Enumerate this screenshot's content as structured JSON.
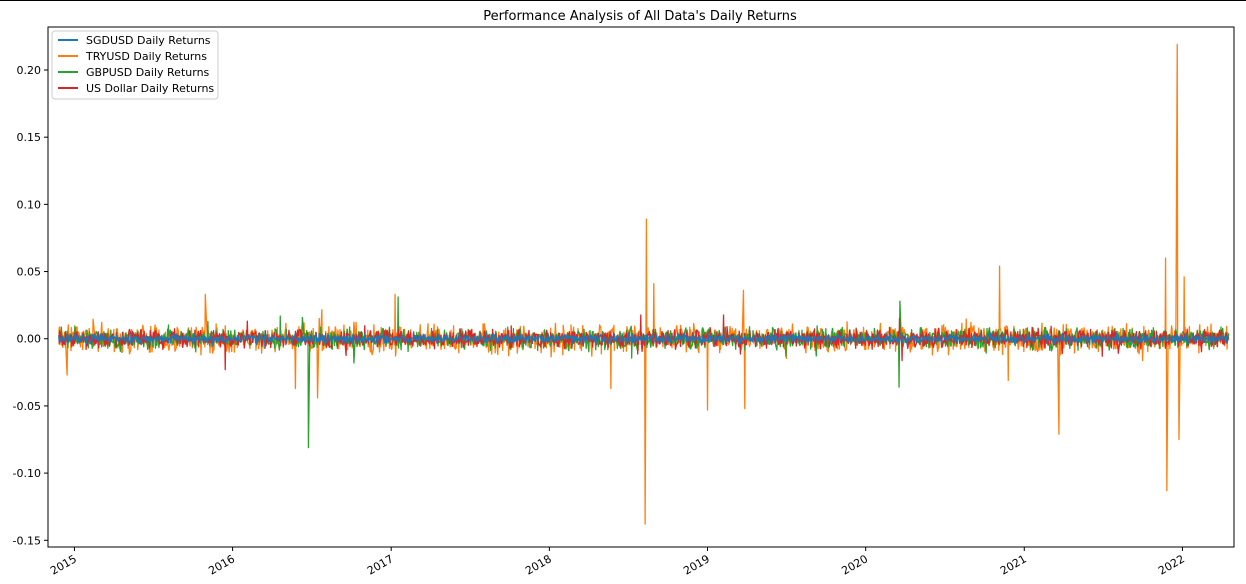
{
  "chart_data": {
    "type": "line",
    "title": "Performance Analysis of All Data's Daily Returns",
    "xlabel": "",
    "ylabel": "",
    "x_range": [
      "2014-11-01",
      "2022-04-30"
    ],
    "x_ticks": [
      "2015",
      "2016",
      "2017",
      "2018",
      "2019",
      "2020",
      "2021",
      "2022"
    ],
    "ylim": [
      -0.155,
      0.232
    ],
    "y_ticks": [
      "-0.15",
      "-0.10",
      "-0.05",
      "0.00",
      "0.05",
      "0.10",
      "0.15",
      "0.20"
    ],
    "y_tick_values": [
      -0.15,
      -0.1,
      -0.05,
      0.0,
      0.05,
      0.1,
      0.15,
      0.2
    ],
    "grid": false,
    "legend_position": "top-left",
    "series": [
      {
        "name": "SGDUSD Daily Returns",
        "color": "#1f77b4",
        "noise_amplitude": 0.004,
        "extremes": []
      },
      {
        "name": "TRYUSD Daily Returns",
        "color": "#ff7f0e",
        "noise_amplitude": 0.012,
        "extremes": [
          {
            "date": "2014-12-15",
            "value": -0.027
          },
          {
            "date": "2015-10-30",
            "value": 0.033
          },
          {
            "date": "2016-05-25",
            "value": -0.037
          },
          {
            "date": "2016-07-15",
            "value": -0.044
          },
          {
            "date": "2017-01-10",
            "value": 0.033
          },
          {
            "date": "2018-05-20",
            "value": 0.04
          },
          {
            "date": "2018-05-23",
            "value": -0.037
          },
          {
            "date": "2018-08-10",
            "value": -0.138
          },
          {
            "date": "2018-08-13",
            "value": 0.089
          },
          {
            "date": "2018-08-30",
            "value": 0.041
          },
          {
            "date": "2019-01-01",
            "value": -0.053
          },
          {
            "date": "2019-03-25",
            "value": 0.036
          },
          {
            "date": "2019-03-28",
            "value": -0.052
          },
          {
            "date": "2020-11-05",
            "value": 0.054
          },
          {
            "date": "2020-11-25",
            "value": -0.031
          },
          {
            "date": "2021-03-22",
            "value": -0.071
          },
          {
            "date": "2021-11-23",
            "value": 0.06
          },
          {
            "date": "2021-11-26",
            "value": -0.113
          },
          {
            "date": "2021-12-20",
            "value": 0.219
          },
          {
            "date": "2021-12-24",
            "value": -0.075
          },
          {
            "date": "2022-01-05",
            "value": 0.046
          }
        ]
      },
      {
        "name": "GBPUSD Daily Returns",
        "color": "#2ca02c",
        "noise_amplitude": 0.009,
        "extremes": [
          {
            "date": "2016-06-24",
            "value": -0.081
          },
          {
            "date": "2016-10-07",
            "value": -0.018
          },
          {
            "date": "2017-01-17",
            "value": 0.031
          },
          {
            "date": "2020-03-18",
            "value": -0.036
          },
          {
            "date": "2020-03-20",
            "value": 0.028
          }
        ]
      },
      {
        "name": "US Dollar Daily Returns",
        "color": "#d62728",
        "noise_amplitude": 0.008,
        "extremes": [
          {
            "date": "2015-12-15",
            "value": -0.023
          },
          {
            "date": "2020-03-19",
            "value": 0.015
          }
        ]
      }
    ]
  }
}
